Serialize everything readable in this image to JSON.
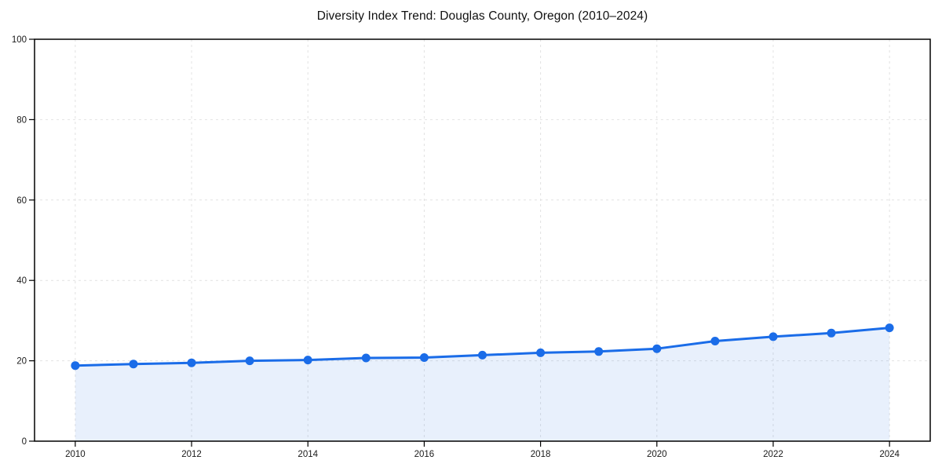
{
  "page": {
    "background": "#ffffff"
  },
  "chart_data": {
    "type": "line",
    "title": "Diversity Index Trend: Douglas County, Oregon (2010–2024)",
    "x": [
      2010,
      2011,
      2012,
      2013,
      2014,
      2015,
      2016,
      2017,
      2018,
      2019,
      2020,
      2021,
      2022,
      2023,
      2024
    ],
    "series": [
      {
        "name": "Diversity Index",
        "values": [
          18.8,
          19.2,
          19.5,
          20.0,
          20.2,
          20.7,
          20.8,
          21.4,
          22.0,
          22.3,
          23.0,
          24.9,
          26.0,
          26.9,
          28.2
        ]
      }
    ],
    "xticks": [
      2010,
      2012,
      2014,
      2016,
      2018,
      2020,
      2022,
      2024
    ],
    "yticks": [
      0,
      20,
      40,
      60,
      80,
      100
    ],
    "xlim": [
      2009.3,
      2024.7
    ],
    "ylim": [
      0,
      100
    ],
    "xlabel": "",
    "ylabel": "",
    "legend_position": "none",
    "grid": "dashed",
    "marker": "circle",
    "area_fill": true,
    "colors": {
      "line": "#1a6ce8",
      "marker": "#1a6ce8",
      "area": "rgba(26,108,224,0.10)",
      "gridline": "#e2e2e2",
      "axis": "#000000",
      "tick_text": "#1a1a1a",
      "title_text": "#111111"
    }
  }
}
